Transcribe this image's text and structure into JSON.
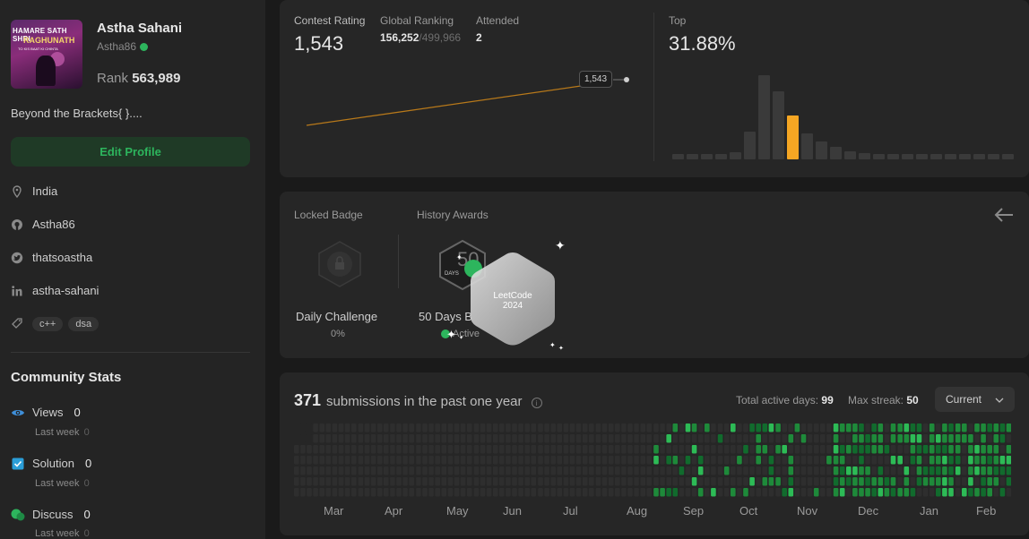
{
  "profile": {
    "avatar_text": {
      "line1": "HAMARE SATH SHRI",
      "line2": "RAGHUNATH",
      "line3": "TO KIS BAAT KI CHINTA"
    },
    "name": "Astha Sahani",
    "handle": "Astha86",
    "rank_label": "Rank",
    "rank_value": "563,989",
    "bio": "Beyond the Brackets{ }....",
    "edit_button": "Edit Profile",
    "location": "India",
    "github": "Astha86",
    "twitter": "thatsoastha",
    "linkedin": "astha-sahani",
    "tags": [
      "c++",
      "dsa"
    ]
  },
  "community": {
    "title": "Community Stats",
    "stats": [
      {
        "label": "Views",
        "value": "0",
        "sub_label": "Last week",
        "sub_value": "0",
        "icon": "eye-icon",
        "color": "#3f8fd9"
      },
      {
        "label": "Solution",
        "value": "0",
        "sub_label": "Last week",
        "sub_value": "0",
        "icon": "check-square-icon",
        "color": "#2b9ed8"
      },
      {
        "label": "Discuss",
        "value": "0",
        "sub_label": "Last week",
        "sub_value": "0",
        "icon": "chat-icon",
        "color": "#2db55d"
      }
    ]
  },
  "contest": {
    "rating_label": "Contest Rating",
    "rating": "1,543",
    "global_label": "Global Ranking",
    "global_rank": "156,252",
    "global_total": "/499,966",
    "attended_label": "Attended",
    "attended": "2",
    "tooltip": "1,543",
    "top_label": "Top",
    "top_value": "31.88%",
    "accent": "#f5a623",
    "distribution": [
      2,
      2,
      2,
      3,
      8,
      30,
      92,
      74,
      48,
      28,
      20,
      14,
      9,
      7,
      5,
      5,
      4,
      4,
      3,
      3,
      3,
      3,
      2,
      2
    ]
  },
  "badges": {
    "locked_label": "Locked Badge",
    "history_label": "History Awards",
    "locked_name": "Daily Challenge",
    "locked_pct": "0%",
    "award_name": "50 Days B",
    "award_status": "Active",
    "award_number": "50",
    "award_days": "DAYS",
    "overlay_line1": "LeetCode",
    "overlay_line2": "2024"
  },
  "submissions": {
    "count": "371",
    "text": "submissions in the past one year",
    "active_label": "Total active days:",
    "active_days": "99",
    "streak_label": "Max streak:",
    "streak": "50",
    "select": "Current",
    "months": [
      "Mar",
      "Apr",
      "May",
      "Jun",
      "Jul",
      "Aug",
      "Sep",
      "Oct",
      "Nov",
      "Dec",
      "Jan",
      "Feb"
    ]
  }
}
